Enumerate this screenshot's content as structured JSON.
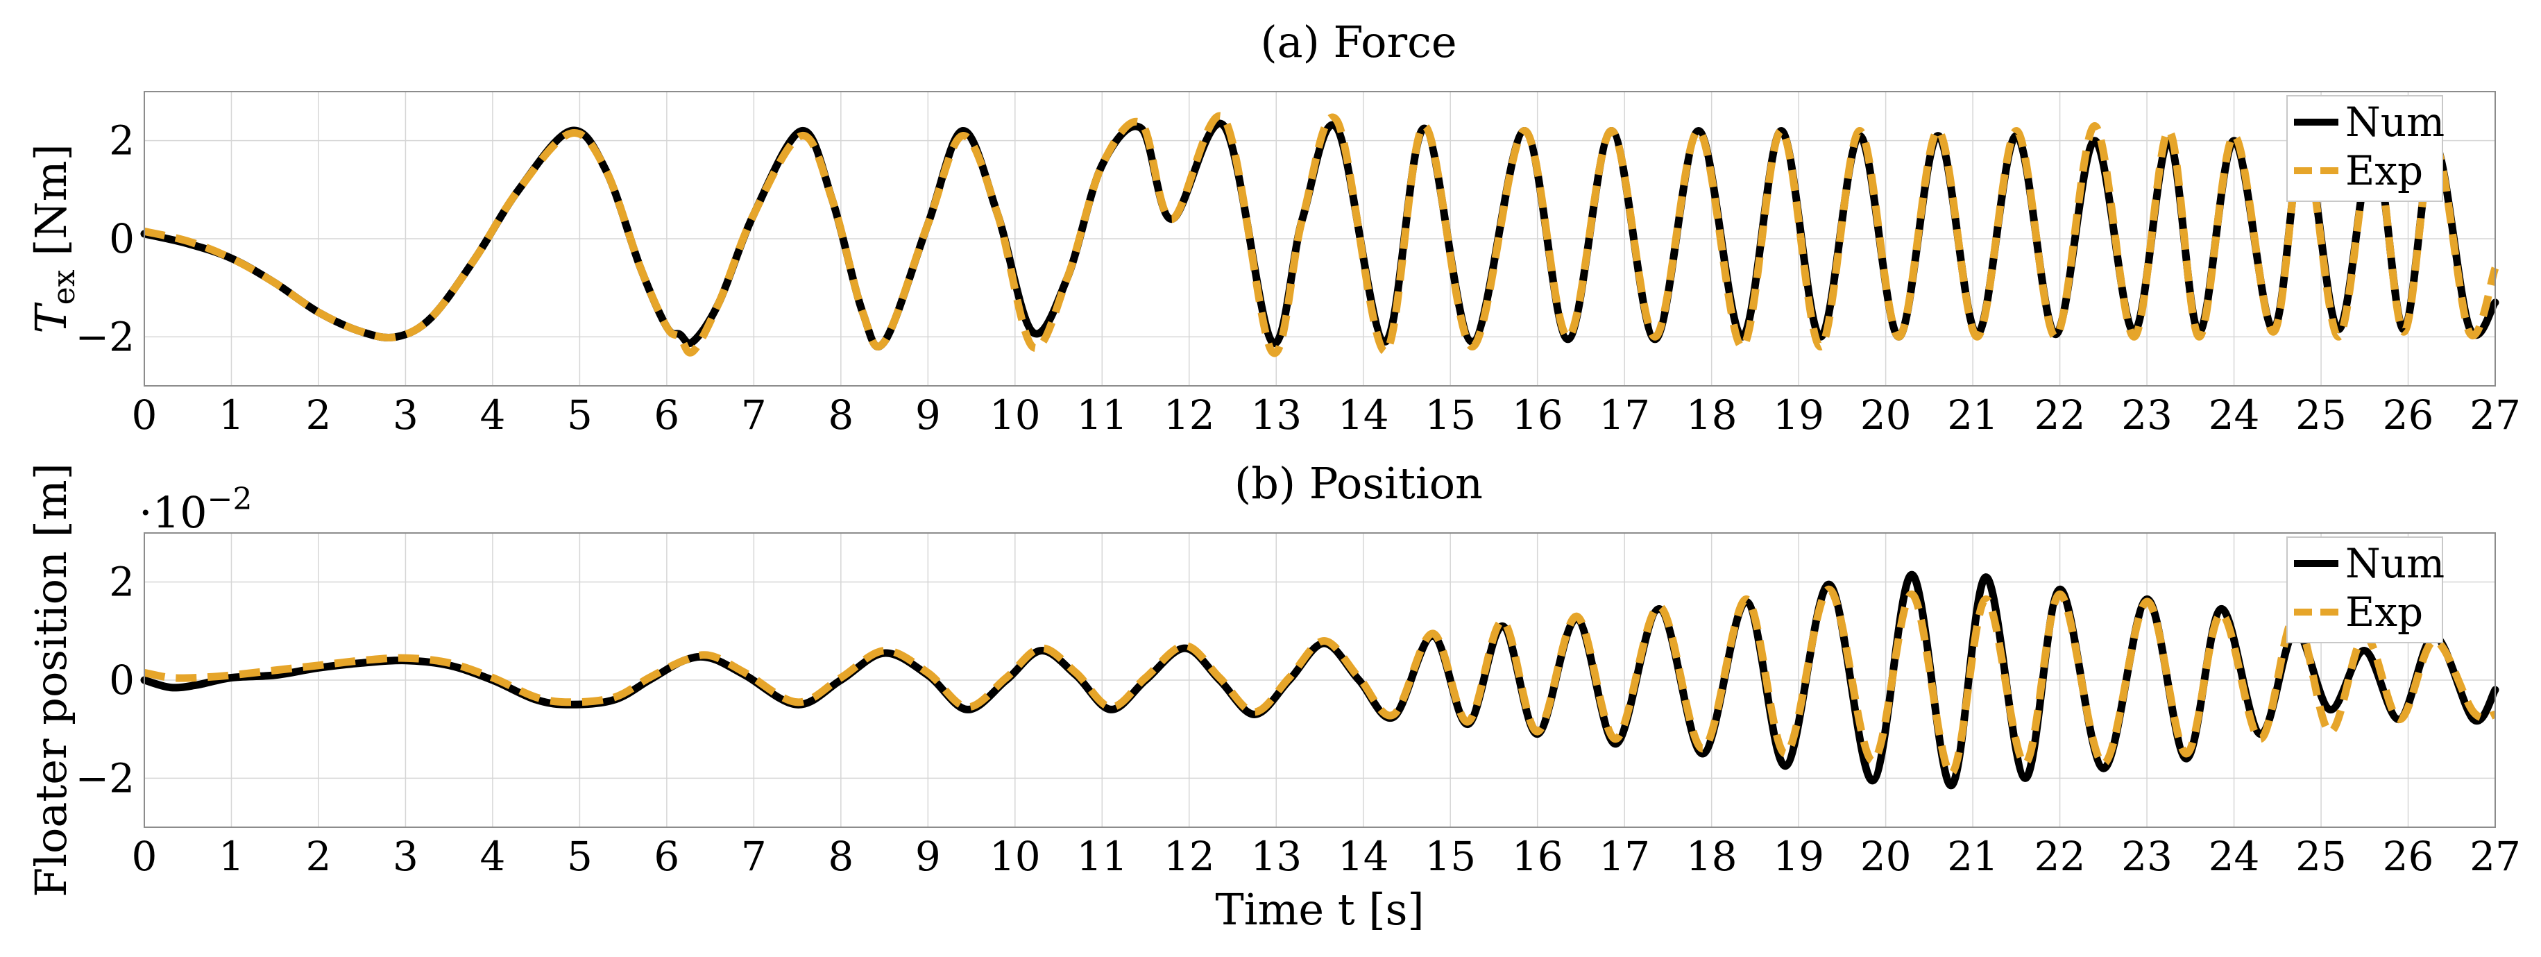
{
  "figure": {
    "xlabel": "Time t [s]"
  },
  "colors": {
    "num": "#000000",
    "exp": "#e6a52a",
    "grid": "#d6d6d6",
    "frame": "#8c8c8c"
  },
  "chart_data": [
    {
      "id": "force",
      "type": "line",
      "title": "(a) Force",
      "ylabel": "T_ex [Nm]",
      "ylabel_main": "T",
      "ylabel_sub": "ex",
      "ylabel_unit": " [Nm]",
      "xlim": [
        0,
        27
      ],
      "ylim": [
        -3,
        3
      ],
      "xticks": [
        0,
        1,
        2,
        3,
        4,
        5,
        6,
        7,
        8,
        9,
        10,
        11,
        12,
        13,
        14,
        15,
        16,
        17,
        18,
        19,
        20,
        21,
        22,
        23,
        24,
        25,
        26,
        27
      ],
      "yticks": [
        -2,
        0,
        2
      ],
      "ytick_labels": [
        "−2",
        "0",
        "2"
      ],
      "grid": true,
      "legend_position": "top-right",
      "series": [
        {
          "name": "Num",
          "style": "solid",
          "color": "#000000",
          "x": [
            0.0,
            0.5,
            1.0,
            1.5,
            2.0,
            2.5,
            2.9,
            3.3,
            3.8,
            4.3,
            4.9,
            5.3,
            5.7,
            6.0,
            6.15,
            6.3,
            6.6,
            7.0,
            7.55,
            7.9,
            8.25,
            8.5,
            9.0,
            9.4,
            9.8,
            10.2,
            10.6,
            11.0,
            11.45,
            11.8,
            12.4,
            12.95,
            13.3,
            13.7,
            14.25,
            14.7,
            15.25,
            15.85,
            16.35,
            16.85,
            17.35,
            17.85,
            18.35,
            18.8,
            19.25,
            19.7,
            20.15,
            20.6,
            21.05,
            21.5,
            21.95,
            22.4,
            22.85,
            23.25,
            23.6,
            24.0,
            24.45,
            24.8,
            25.2,
            25.6,
            25.95,
            26.3,
            26.7,
            27.0
          ],
          "y": [
            0.1,
            -0.1,
            -0.4,
            -0.9,
            -1.5,
            -1.9,
            -2.0,
            -1.6,
            -0.4,
            1.0,
            2.2,
            1.4,
            -0.6,
            -1.8,
            -1.95,
            -2.1,
            -1.3,
            0.5,
            2.2,
            0.8,
            -1.5,
            -2.1,
            0.3,
            2.2,
            0.5,
            -1.9,
            -0.8,
            1.5,
            2.25,
            0.4,
            2.3,
            -2.1,
            0.4,
            2.25,
            -2.1,
            2.25,
            -2.1,
            2.2,
            -2.05,
            2.2,
            -2.05,
            2.2,
            -2.0,
            2.2,
            -2.0,
            2.1,
            -2.0,
            2.1,
            -1.95,
            2.1,
            -1.95,
            2.0,
            -1.9,
            2.0,
            -1.9,
            2.0,
            -1.85,
            2.0,
            -1.85,
            1.95,
            -1.85,
            1.95,
            -1.8,
            -1.3
          ]
        },
        {
          "name": "Exp",
          "style": "dashed",
          "color": "#e6a52a",
          "x": [
            0.0,
            0.5,
            1.0,
            1.5,
            2.0,
            2.5,
            2.9,
            3.3,
            3.8,
            4.3,
            4.9,
            5.3,
            5.7,
            6.0,
            6.15,
            6.3,
            6.6,
            7.0,
            7.55,
            7.9,
            8.25,
            8.5,
            9.0,
            9.4,
            9.8,
            10.2,
            10.6,
            11.0,
            11.45,
            11.8,
            12.4,
            12.95,
            13.3,
            13.7,
            14.25,
            14.7,
            15.25,
            15.85,
            16.35,
            16.85,
            17.35,
            17.85,
            18.35,
            18.8,
            19.25,
            19.7,
            20.15,
            20.6,
            21.05,
            21.5,
            21.95,
            22.4,
            22.85,
            23.25,
            23.6,
            24.0,
            24.45,
            24.8,
            25.2,
            25.6,
            25.95,
            26.3,
            26.7,
            27.0
          ],
          "y": [
            0.15,
            -0.05,
            -0.4,
            -0.9,
            -1.5,
            -1.9,
            -2.0,
            -1.6,
            -0.4,
            1.0,
            2.15,
            1.4,
            -0.6,
            -1.8,
            -2.0,
            -2.3,
            -1.3,
            0.5,
            2.1,
            0.8,
            -1.5,
            -2.1,
            0.3,
            2.1,
            0.5,
            -2.2,
            -0.8,
            1.5,
            2.35,
            0.4,
            2.45,
            -2.3,
            0.4,
            2.4,
            -2.3,
            2.3,
            -2.2,
            2.2,
            -2.0,
            2.2,
            -2.0,
            2.2,
            -2.2,
            2.2,
            -2.2,
            2.2,
            -2.0,
            2.2,
            -2.0,
            2.2,
            -2.0,
            2.3,
            -2.0,
            2.2,
            -2.0,
            2.1,
            -1.9,
            2.0,
            -2.0,
            2.0,
            -1.9,
            1.95,
            -1.9,
            -0.6
          ]
        }
      ]
    },
    {
      "id": "position",
      "type": "line",
      "title": "(b) Position",
      "ylabel": "Floater position [m]",
      "scale_label_base": "·10",
      "scale_label_exp": "−2",
      "xlim": [
        0,
        27
      ],
      "ylim": [
        -3,
        3
      ],
      "xticks": [
        0,
        1,
        2,
        3,
        4,
        5,
        6,
        7,
        8,
        9,
        10,
        11,
        12,
        13,
        14,
        15,
        16,
        17,
        18,
        19,
        20,
        21,
        22,
        23,
        24,
        25,
        26,
        27
      ],
      "yticks": [
        -2,
        0,
        2
      ],
      "ytick_labels": [
        "−2",
        "0",
        "2"
      ],
      "grid": true,
      "legend_position": "top-right",
      "series": [
        {
          "name": "Num",
          "style": "solid",
          "color": "#000000",
          "x": [
            0.0,
            0.3,
            0.6,
            1.0,
            1.5,
            2.0,
            2.5,
            3.0,
            3.5,
            4.0,
            4.5,
            4.9,
            5.4,
            5.8,
            6.2,
            6.5,
            6.9,
            7.5,
            8.0,
            8.5,
            9.0,
            9.45,
            9.9,
            10.3,
            10.7,
            11.1,
            11.5,
            11.95,
            12.35,
            12.75,
            13.15,
            13.55,
            13.95,
            14.35,
            14.8,
            15.2,
            15.6,
            16.0,
            16.45,
            16.9,
            17.4,
            17.9,
            18.4,
            18.85,
            19.35,
            19.85,
            20.3,
            20.75,
            21.15,
            21.6,
            22.0,
            22.5,
            23.0,
            23.45,
            23.85,
            24.3,
            24.7,
            25.1,
            25.5,
            25.9,
            26.3,
            26.75,
            27.0
          ],
          "y": [
            0.0,
            -0.15,
            -0.1,
            0.05,
            0.1,
            0.25,
            0.35,
            0.4,
            0.3,
            0.0,
            -0.4,
            -0.5,
            -0.4,
            0.0,
            0.4,
            0.45,
            0.1,
            -0.5,
            0.0,
            0.55,
            0.1,
            -0.6,
            0.0,
            0.6,
            0.1,
            -0.6,
            0.0,
            0.65,
            0.0,
            -0.7,
            0.0,
            0.75,
            0.0,
            -0.75,
            0.9,
            -0.9,
            1.1,
            -1.1,
            1.25,
            -1.3,
            1.45,
            -1.5,
            1.6,
            -1.75,
            1.95,
            -2.05,
            2.15,
            -2.15,
            2.1,
            -2.0,
            1.85,
            -1.8,
            1.65,
            -1.6,
            1.45,
            -1.1,
            1.0,
            -0.6,
            0.6,
            -0.8,
            0.9,
            -0.8,
            -0.2
          ]
        },
        {
          "name": "Exp",
          "style": "dashed",
          "color": "#e6a52a",
          "x": [
            0.0,
            0.3,
            0.6,
            1.0,
            1.5,
            2.0,
            2.5,
            3.0,
            3.5,
            4.0,
            4.5,
            4.9,
            5.4,
            5.8,
            6.2,
            6.5,
            6.9,
            7.5,
            8.0,
            8.5,
            9.0,
            9.45,
            9.9,
            10.3,
            10.7,
            11.1,
            11.5,
            11.95,
            12.35,
            12.75,
            13.15,
            13.55,
            13.95,
            14.35,
            14.8,
            15.2,
            15.6,
            16.0,
            16.45,
            16.9,
            17.4,
            17.9,
            18.4,
            18.85,
            19.35,
            19.85,
            20.3,
            20.75,
            21.15,
            21.6,
            22.0,
            22.5,
            23.0,
            23.45,
            23.85,
            24.3,
            24.7,
            25.1,
            25.5,
            25.9,
            26.3,
            26.75,
            27.0
          ],
          "y": [
            0.15,
            0.05,
            0.05,
            0.1,
            0.2,
            0.3,
            0.4,
            0.45,
            0.35,
            0.05,
            -0.35,
            -0.45,
            -0.35,
            0.05,
            0.4,
            0.5,
            0.15,
            -0.45,
            0.05,
            0.6,
            0.15,
            -0.55,
            0.05,
            0.65,
            0.15,
            -0.55,
            0.05,
            0.7,
            0.05,
            -0.65,
            0.05,
            0.8,
            0.05,
            -0.7,
            0.95,
            -0.85,
            1.2,
            -1.05,
            1.3,
            -1.2,
            1.5,
            -1.4,
            1.65,
            -1.5,
            1.85,
            -1.65,
            1.75,
            -1.9,
            1.65,
            -1.7,
            1.75,
            -1.7,
            1.6,
            -1.5,
            1.35,
            -1.2,
            1.3,
            -1.05,
            0.9,
            -0.8,
            0.8,
            -0.65,
            -0.7
          ]
        }
      ]
    }
  ]
}
